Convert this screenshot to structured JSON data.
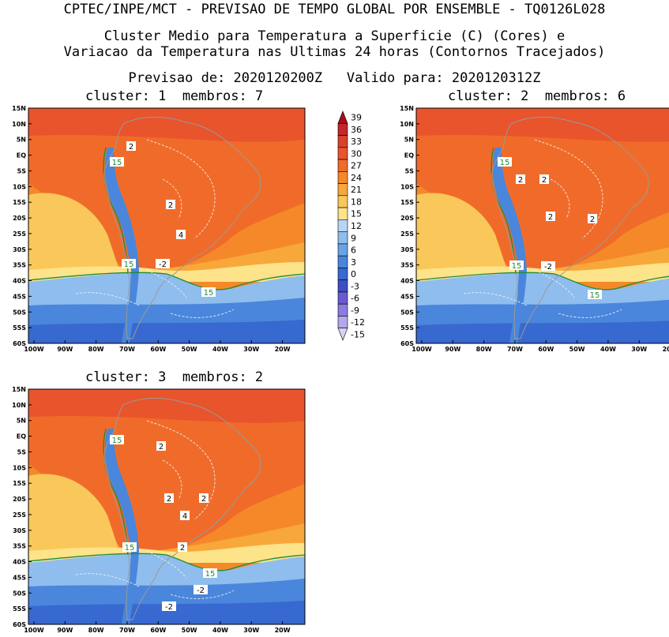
{
  "header": {
    "line1": "CPTEC/INPE/MCT - PREVISAO DE TEMPO GLOBAL POR ENSEMBLE - TQ0126L028",
    "line2": "Cluster Medio para Temperatura a Superficie (C) (Cores) e",
    "line3": "Variacao da Temperatura nas Ultimas 24 horas (Contornos Tracejados)",
    "line4": "Previsao de: 2020120200Z   Valido para: 2020120312Z"
  },
  "panels": [
    {
      "title": "cluster: 1  membros: 7"
    },
    {
      "title": "cluster: 2  membros: 6"
    },
    {
      "title": "cluster: 3  membros: 2"
    }
  ],
  "lat_labels": [
    "15N",
    "10N",
    "5N",
    "EQ",
    "5S",
    "10S",
    "15S",
    "20S",
    "25S",
    "30S",
    "35S",
    "40S",
    "45S",
    "50S",
    "55S",
    "60S"
  ],
  "lon_labels": [
    "100W",
    "90W",
    "80W",
    "70W",
    "60W",
    "50W",
    "40W",
    "30W",
    "20W"
  ],
  "colorbar": {
    "labels": [
      "39",
      "36",
      "33",
      "30",
      "27",
      "24",
      "21",
      "18",
      "15",
      "12",
      "9",
      "6",
      "3",
      "0",
      "-3",
      "-6",
      "-9",
      "-12",
      "-15"
    ],
    "colors": [
      "#a50f15",
      "#c3262b",
      "#d9412d",
      "#e8542c",
      "#f06b2a",
      "#f5892a",
      "#f8a83a",
      "#fac85a",
      "#fde38a",
      "#b8d6f4",
      "#8fbdee",
      "#6aa3e6",
      "#4a86db",
      "#3769d0",
      "#3c4fc4",
      "#6a5acd",
      "#8c7be0",
      "#b3a8ec",
      "#d8d0f6"
    ]
  },
  "map_colors": {
    "hot": "#e8542c",
    "warm": "#f06b2a",
    "orange": "#f5892a",
    "lightorange": "#f8a83a",
    "yellow": "#fac85a",
    "paleyellow": "#fde38a",
    "lightblue": "#8fbdee",
    "blue": "#4a86db",
    "deepblue": "#3769d0",
    "line15": "#1e8c3a",
    "coast": "#9a9a9a"
  },
  "contour_labels": {
    "p1": [
      "15",
      "2",
      "2",
      "4",
      "15",
      "-2",
      "15"
    ],
    "p2": [
      "15",
      "2",
      "2",
      "2",
      "2",
      "15",
      "-2",
      "15"
    ],
    "p3": [
      "15",
      "2",
      "2",
      "2",
      "4",
      "15",
      "2",
      "15",
      "-2",
      "-2"
    ]
  }
}
